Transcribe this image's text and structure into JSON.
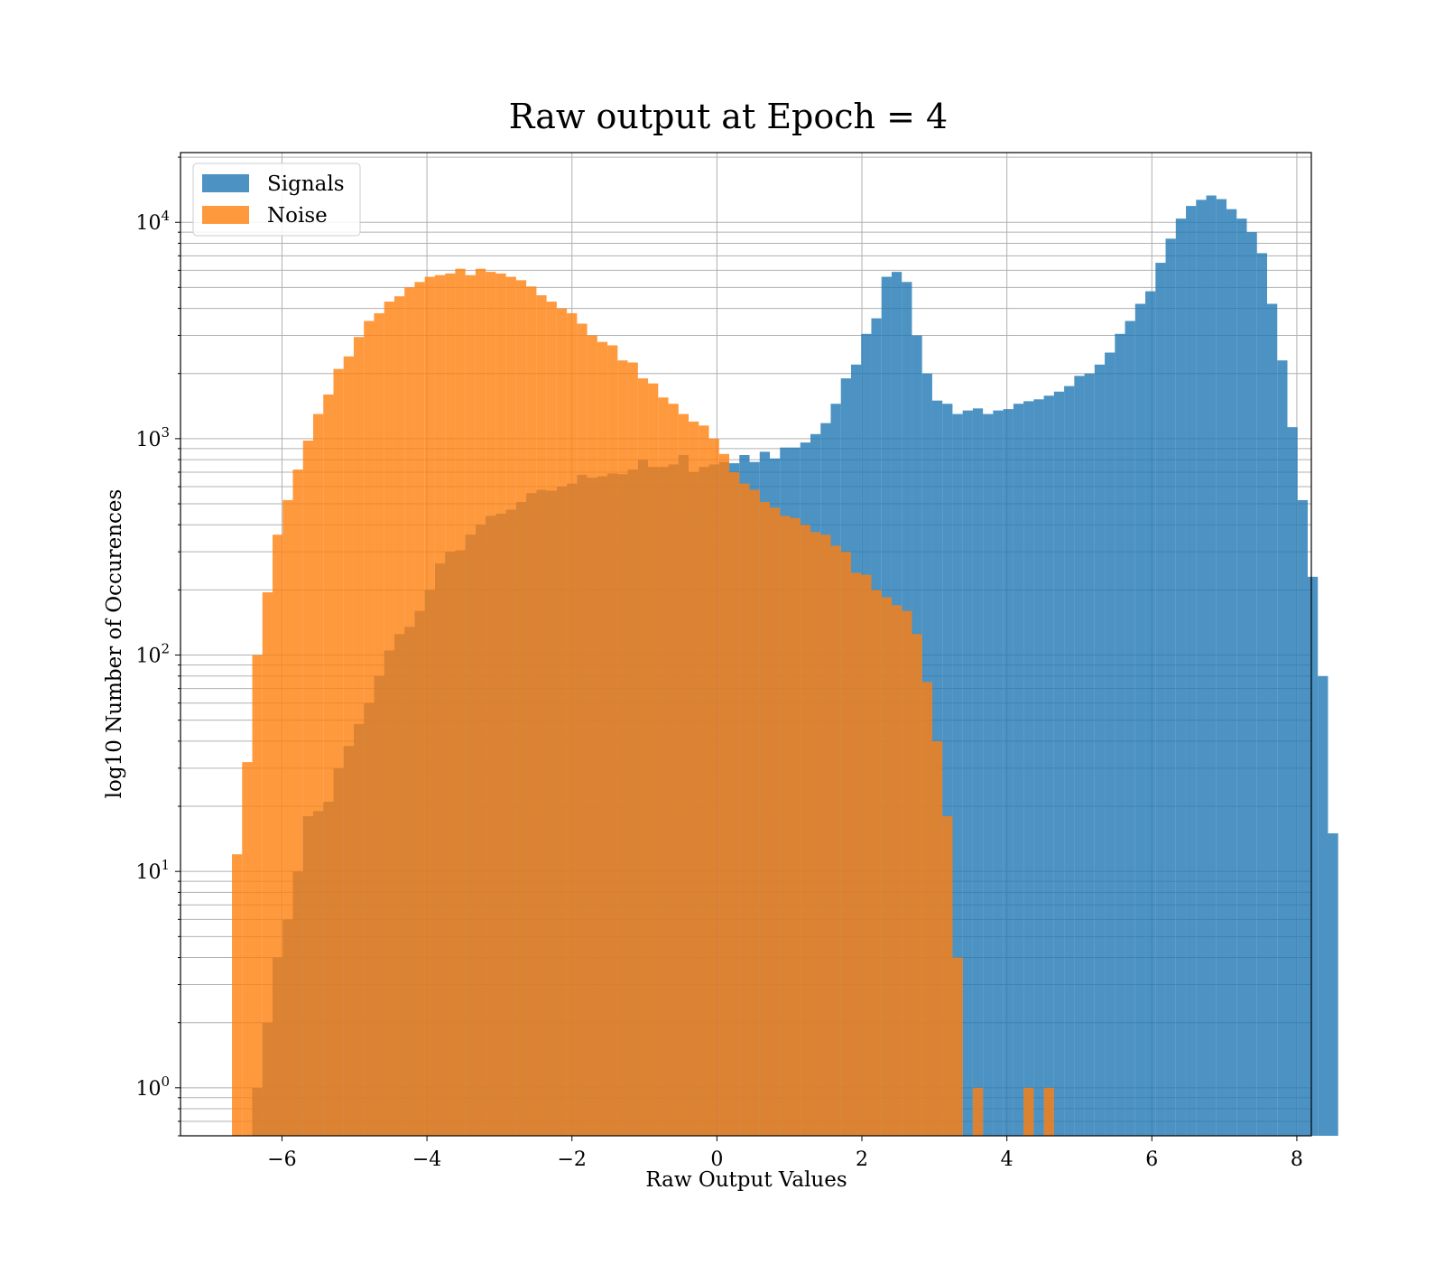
{
  "chart_data": {
    "type": "histogram",
    "title": "Raw output at Epoch = 4",
    "xlabel": "Raw Output Values",
    "ylabel": "log10 Number of Occurences",
    "xlim": [
      -7.4,
      8.2
    ],
    "ylim": [
      0.6,
      21000
    ],
    "yscale": "log",
    "grid": "on",
    "legend_position": "top-left",
    "xticks": [
      -6,
      -4,
      -2,
      0,
      2,
      4,
      6,
      8
    ],
    "xtick_labels": [
      "−6",
      "−4",
      "−2",
      "0",
      "2",
      "4",
      "6",
      "8"
    ],
    "yticks": [
      {
        "value": 1,
        "base": "10",
        "exp": "0"
      },
      {
        "value": 10,
        "base": "10",
        "exp": "1"
      },
      {
        "value": 100,
        "base": "10",
        "exp": "2"
      },
      {
        "value": 1000,
        "base": "10",
        "exp": "3"
      },
      {
        "value": 10000,
        "base": "10",
        "exp": "4"
      }
    ],
    "series": [
      {
        "name": "Signals",
        "color": "#1f77b4",
        "opacity": 0.8,
        "bins": [
          [
            -6.41,
            -6.27,
            1
          ],
          [
            -6.27,
            -6.13,
            2
          ],
          [
            -6.13,
            -5.99,
            4
          ],
          [
            -5.99,
            -5.85,
            6
          ],
          [
            -5.85,
            -5.71,
            10
          ],
          [
            -5.71,
            -5.57,
            18
          ],
          [
            -5.57,
            -5.43,
            19
          ],
          [
            -5.43,
            -5.29,
            21
          ],
          [
            -5.29,
            -5.15,
            30
          ],
          [
            -5.15,
            -5.01,
            38
          ],
          [
            -5.01,
            -4.87,
            48
          ],
          [
            -4.87,
            -4.73,
            60
          ],
          [
            -4.73,
            -4.59,
            80
          ],
          [
            -4.59,
            -4.45,
            105
          ],
          [
            -4.45,
            -4.31,
            125
          ],
          [
            -4.31,
            -4.17,
            135
          ],
          [
            -4.17,
            -4.03,
            160
          ],
          [
            -4.03,
            -3.89,
            200
          ],
          [
            -3.89,
            -3.75,
            265
          ],
          [
            -3.75,
            -3.61,
            300
          ],
          [
            -3.61,
            -3.47,
            305
          ],
          [
            -3.47,
            -3.33,
            360
          ],
          [
            -3.33,
            -3.19,
            400
          ],
          [
            -3.19,
            -3.05,
            440
          ],
          [
            -3.05,
            -2.91,
            450
          ],
          [
            -2.91,
            -2.77,
            470
          ],
          [
            -2.77,
            -2.63,
            510
          ],
          [
            -2.63,
            -2.49,
            560
          ],
          [
            -2.49,
            -2.35,
            580
          ],
          [
            -2.35,
            -2.21,
            575
          ],
          [
            -2.21,
            -2.07,
            600
          ],
          [
            -2.07,
            -1.93,
            620
          ],
          [
            -1.93,
            -1.79,
            680
          ],
          [
            -1.79,
            -1.65,
            660
          ],
          [
            -1.65,
            -1.51,
            670
          ],
          [
            -1.51,
            -1.37,
            690
          ],
          [
            -1.37,
            -1.23,
            685
          ],
          [
            -1.23,
            -1.09,
            720
          ],
          [
            -1.09,
            -0.95,
            800
          ],
          [
            -0.95,
            -0.81,
            740
          ],
          [
            -0.81,
            -0.67,
            740
          ],
          [
            -0.67,
            -0.53,
            760
          ],
          [
            -0.53,
            -0.39,
            840
          ],
          [
            -0.39,
            -0.25,
            700
          ],
          [
            -0.25,
            -0.11,
            740
          ],
          [
            -0.11,
            0.03,
            760
          ],
          [
            0.03,
            0.17,
            780
          ],
          [
            0.17,
            0.31,
            770
          ],
          [
            0.31,
            0.45,
            840
          ],
          [
            0.45,
            0.59,
            780
          ],
          [
            0.59,
            0.73,
            870
          ],
          [
            0.73,
            0.87,
            810
          ],
          [
            0.87,
            1.01,
            910
          ],
          [
            1.01,
            1.15,
            910
          ],
          [
            1.15,
            1.29,
            960
          ],
          [
            1.29,
            1.43,
            1050
          ],
          [
            1.43,
            1.57,
            1180
          ],
          [
            1.57,
            1.71,
            1450
          ],
          [
            1.71,
            1.85,
            1900
          ],
          [
            1.85,
            1.99,
            2200
          ],
          [
            1.99,
            2.13,
            3050
          ],
          [
            2.13,
            2.27,
            3600
          ],
          [
            2.27,
            2.41,
            5600
          ],
          [
            2.41,
            2.55,
            5900
          ],
          [
            2.55,
            2.69,
            5300
          ],
          [
            2.69,
            2.83,
            3000
          ],
          [
            2.83,
            2.97,
            2000
          ],
          [
            2.97,
            3.11,
            1500
          ],
          [
            3.11,
            3.25,
            1450
          ],
          [
            3.25,
            3.39,
            1300
          ],
          [
            3.39,
            3.53,
            1350
          ],
          [
            3.53,
            3.67,
            1380
          ],
          [
            3.67,
            3.81,
            1300
          ],
          [
            3.81,
            3.95,
            1350
          ],
          [
            3.95,
            4.09,
            1370
          ],
          [
            4.09,
            4.23,
            1450
          ],
          [
            4.23,
            4.37,
            1490
          ],
          [
            4.37,
            4.51,
            1520
          ],
          [
            4.51,
            4.65,
            1580
          ],
          [
            4.65,
            4.79,
            1650
          ],
          [
            4.79,
            4.93,
            1750
          ],
          [
            4.93,
            5.07,
            1950
          ],
          [
            5.07,
            5.21,
            2000
          ],
          [
            5.21,
            5.35,
            2200
          ],
          [
            5.35,
            5.49,
            2500
          ],
          [
            5.49,
            5.63,
            3050
          ],
          [
            5.63,
            5.77,
            3500
          ],
          [
            5.77,
            5.91,
            4200
          ],
          [
            5.91,
            6.05,
            4800
          ],
          [
            6.05,
            6.19,
            6500
          ],
          [
            6.19,
            6.33,
            8400
          ],
          [
            6.33,
            6.47,
            10400
          ],
          [
            6.47,
            6.61,
            11900
          ],
          [
            6.61,
            6.75,
            12700
          ],
          [
            6.75,
            6.89,
            13300
          ],
          [
            6.89,
            7.03,
            12800
          ],
          [
            7.03,
            7.17,
            11500
          ],
          [
            7.17,
            7.31,
            10400
          ],
          [
            7.31,
            7.45,
            9000
          ],
          [
            7.45,
            7.59,
            7200
          ],
          [
            7.59,
            7.73,
            4200
          ],
          [
            7.73,
            7.87,
            2300
          ],
          [
            7.87,
            8.01,
            1130
          ],
          [
            8.01,
            8.15,
            520
          ],
          [
            8.15,
            8.29,
            230
          ],
          [
            8.29,
            8.43,
            80
          ],
          [
            8.43,
            8.57,
            15
          ]
        ]
      },
      {
        "name": "Noise",
        "color": "#ff7f0e",
        "opacity": 0.8,
        "bins": [
          [
            -6.69,
            -6.55,
            12
          ],
          [
            -6.55,
            -6.41,
            32
          ],
          [
            -6.41,
            -6.27,
            100
          ],
          [
            -6.27,
            -6.13,
            195
          ],
          [
            -6.13,
            -5.99,
            360
          ],
          [
            -5.99,
            -5.85,
            520
          ],
          [
            -5.85,
            -5.71,
            720
          ],
          [
            -5.71,
            -5.57,
            980
          ],
          [
            -5.57,
            -5.43,
            1300
          ],
          [
            -5.43,
            -5.29,
            1600
          ],
          [
            -5.29,
            -5.15,
            2100
          ],
          [
            -5.15,
            -5.01,
            2400
          ],
          [
            -5.01,
            -4.87,
            2950
          ],
          [
            -4.87,
            -4.73,
            3500
          ],
          [
            -4.73,
            -4.59,
            3800
          ],
          [
            -4.59,
            -4.45,
            4300
          ],
          [
            -4.45,
            -4.31,
            4550
          ],
          [
            -4.31,
            -4.17,
            5000
          ],
          [
            -4.17,
            -4.03,
            5300
          ],
          [
            -4.03,
            -3.89,
            5600
          ],
          [
            -3.89,
            -3.75,
            5700
          ],
          [
            -3.75,
            -3.61,
            5800
          ],
          [
            -3.61,
            -3.47,
            6100
          ],
          [
            -3.47,
            -3.33,
            5700
          ],
          [
            -3.33,
            -3.19,
            6100
          ],
          [
            -3.19,
            -3.05,
            5900
          ],
          [
            -3.05,
            -2.91,
            5800
          ],
          [
            -2.91,
            -2.77,
            5600
          ],
          [
            -2.77,
            -2.63,
            5400
          ],
          [
            -2.63,
            -2.49,
            5050
          ],
          [
            -2.49,
            -2.35,
            4600
          ],
          [
            -2.35,
            -2.21,
            4300
          ],
          [
            -2.21,
            -2.07,
            4000
          ],
          [
            -2.07,
            -1.93,
            3800
          ],
          [
            -1.93,
            -1.79,
            3400
          ],
          [
            -1.79,
            -1.65,
            3000
          ],
          [
            -1.65,
            -1.51,
            2800
          ],
          [
            -1.51,
            -1.37,
            2700
          ],
          [
            -1.37,
            -1.23,
            2300
          ],
          [
            -1.23,
            -1.09,
            2250
          ],
          [
            -1.09,
            -0.95,
            1900
          ],
          [
            -0.95,
            -0.81,
            1800
          ],
          [
            -0.81,
            -0.67,
            1550
          ],
          [
            -0.67,
            -0.53,
            1450
          ],
          [
            -0.53,
            -0.39,
            1300
          ],
          [
            -0.39,
            -0.25,
            1200
          ],
          [
            -0.25,
            -0.11,
            1150
          ],
          [
            -0.11,
            0.03,
            1000
          ],
          [
            0.03,
            0.17,
            850
          ],
          [
            0.17,
            0.31,
            700
          ],
          [
            0.31,
            0.45,
            620
          ],
          [
            0.45,
            0.59,
            580
          ],
          [
            0.59,
            0.73,
            510
          ],
          [
            0.73,
            0.87,
            480
          ],
          [
            0.87,
            1.01,
            440
          ],
          [
            1.01,
            1.15,
            430
          ],
          [
            1.15,
            1.29,
            400
          ],
          [
            1.29,
            1.43,
            370
          ],
          [
            1.43,
            1.57,
            360
          ],
          [
            1.57,
            1.71,
            320
          ],
          [
            1.71,
            1.85,
            300
          ],
          [
            1.85,
            1.99,
            240
          ],
          [
            1.99,
            2.13,
            235
          ],
          [
            2.13,
            2.27,
            200
          ],
          [
            2.27,
            2.41,
            185
          ],
          [
            2.41,
            2.55,
            170
          ],
          [
            2.55,
            2.69,
            160
          ],
          [
            2.69,
            2.83,
            125
          ],
          [
            2.83,
            2.97,
            75
          ],
          [
            2.97,
            3.11,
            40
          ],
          [
            3.11,
            3.25,
            18
          ],
          [
            3.25,
            3.39,
            4
          ],
          [
            3.39,
            3.53,
            0
          ],
          [
            3.53,
            3.67,
            1
          ],
          [
            3.67,
            3.81,
            0
          ],
          [
            3.81,
            3.95,
            0
          ],
          [
            3.95,
            4.09,
            0
          ],
          [
            4.09,
            4.23,
            0
          ],
          [
            4.23,
            4.37,
            1
          ],
          [
            4.37,
            4.51,
            0
          ],
          [
            4.51,
            4.65,
            1
          ]
        ]
      }
    ]
  }
}
